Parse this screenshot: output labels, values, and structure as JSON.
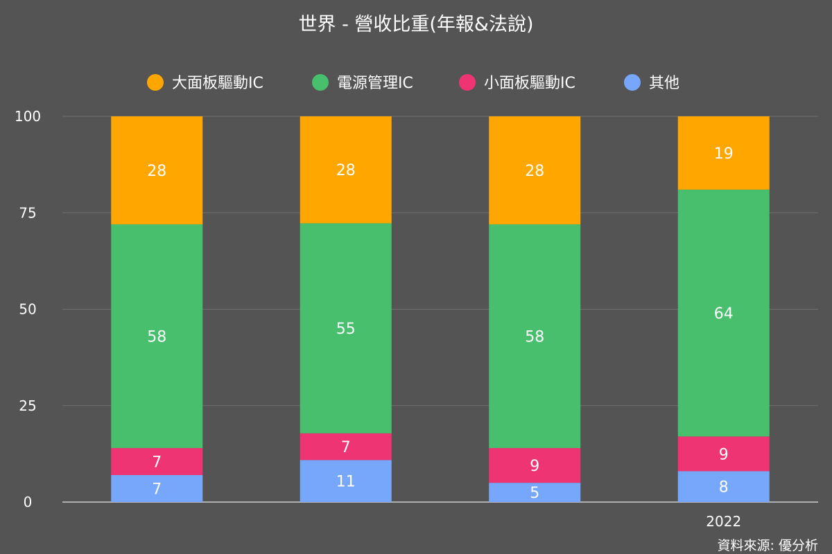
{
  "chart_data": {
    "type": "bar",
    "stacked": true,
    "title": "世界 - 營收比重(年報&法說)",
    "source": "資料來源: 優分析",
    "categories": [
      "",
      "",
      "",
      "2022"
    ],
    "series": [
      {
        "name": "其他",
        "color": "#76a7fa",
        "values": [
          7,
          11,
          5,
          8
        ]
      },
      {
        "name": "小面板驅動IC",
        "color": "#ef3473",
        "values": [
          7,
          7,
          9,
          9
        ]
      },
      {
        "name": "電源管理IC",
        "color": "#47bf6d",
        "values": [
          58,
          55,
          58,
          64
        ]
      },
      {
        "name": "大面板驅動IC",
        "color": "#ffa600",
        "values": [
          28,
          28,
          28,
          19
        ]
      }
    ],
    "legend_order": [
      "大面板驅動IC",
      "電源管理IC",
      "小面板驅動IC",
      "其他"
    ],
    "ylim": [
      0,
      100
    ],
    "yticks": [
      0,
      25,
      50,
      75,
      100
    ],
    "grid": true,
    "legend_position": "top"
  }
}
